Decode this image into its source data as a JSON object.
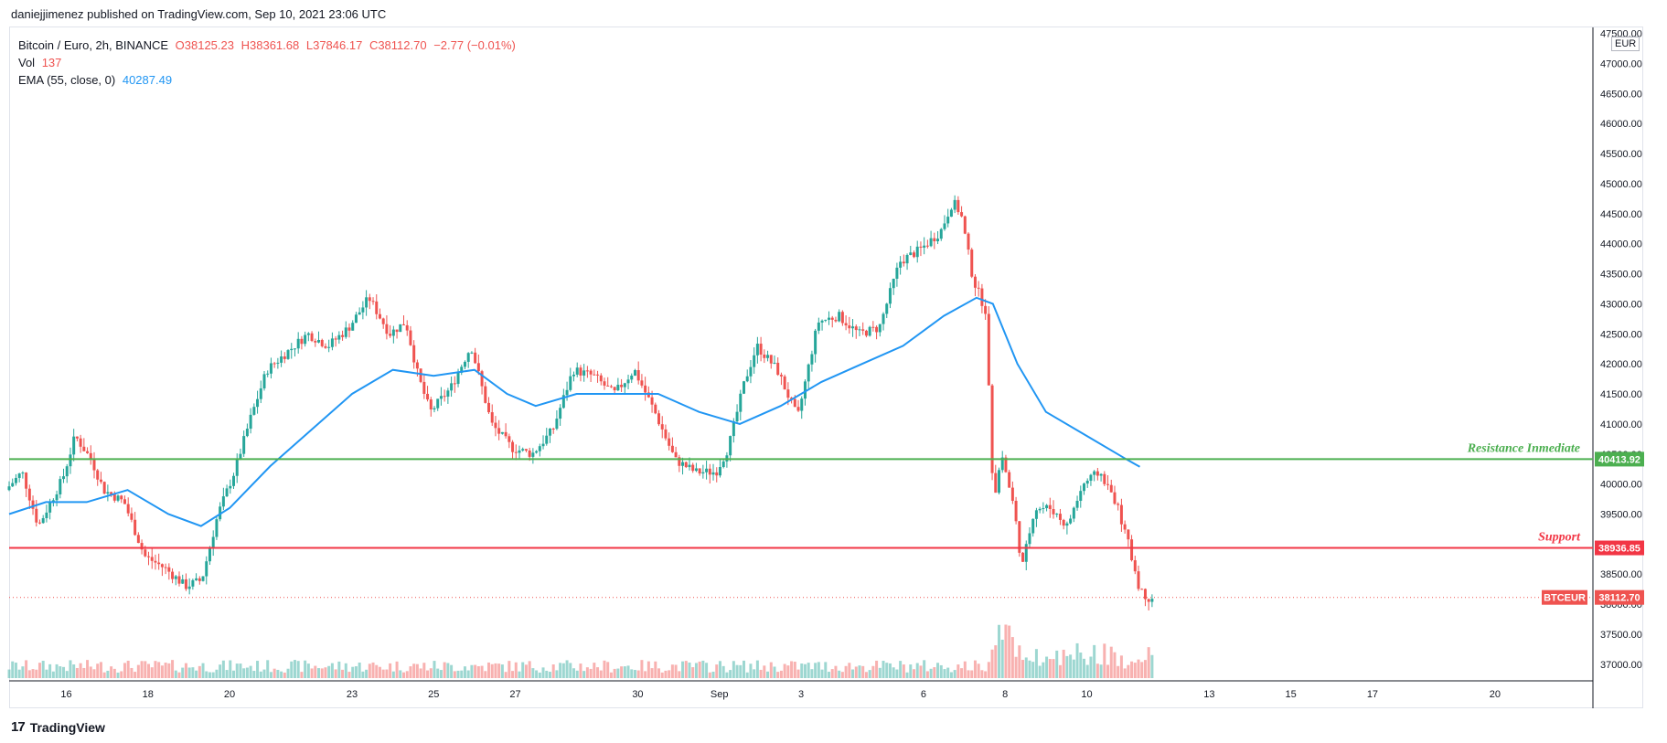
{
  "header": {
    "published_line": "daniejjimenez published on TradingView.com, Sep 10, 2021 23:06 UTC"
  },
  "legend": {
    "symbol": "Bitcoin / Euro, 2h, BINANCE",
    "open": "O38125.23",
    "high": "H38361.68",
    "low": "L37846.17",
    "close": "C38112.70",
    "change": "−2.77 (−0.01%)",
    "vol_label": "Vol",
    "vol_value": "137",
    "ema_label": "EMA (55, close, 0)",
    "ema_value": "40287.49"
  },
  "currency_badge": "EUR",
  "footer": {
    "logo_mark": "17",
    "brand": "TradingView"
  },
  "colors": {
    "up": "#26a69a",
    "down": "#ef5350",
    "ema": "#2196f3",
    "resistance": "#4caf50",
    "support": "#f23645"
  },
  "chart_data": {
    "type": "candlestick",
    "price_axis": {
      "min": 36800,
      "max": 47600,
      "ticks": [
        37000,
        37500,
        38000,
        38500,
        39000,
        39500,
        40000,
        40500,
        41000,
        41500,
        42000,
        42500,
        43000,
        43500,
        44000,
        44500,
        45000,
        45500,
        46000,
        46500,
        47000,
        47500
      ],
      "tick_labels": [
        "37000.00",
        "37500.00",
        "38000.00",
        "38500.00",
        "39000.00",
        "39500.00",
        "40000.00",
        "40500.00",
        "41000.00",
        "41500.00",
        "42000.00",
        "42500.00",
        "43000.00",
        "43500.00",
        "44000.00",
        "44500.00",
        "45000.00",
        "45500.00",
        "46000.00",
        "46500.00",
        "47000.00",
        "47500.00"
      ]
    },
    "time_axis": {
      "labels": [
        "16",
        "18",
        "20",
        "23",
        "25",
        "27",
        "30",
        "Sep",
        "3",
        "6",
        "8",
        "10",
        "13",
        "15",
        "17",
        "20"
      ],
      "label_days": [
        0,
        2,
        4,
        7,
        9,
        11,
        14,
        16,
        18,
        21,
        23,
        25,
        28,
        30,
        32,
        35
      ]
    },
    "levels": [
      {
        "name": "Resistance Inmediate",
        "price": 40413.92,
        "label": "40413.92",
        "color": "#4caf50"
      },
      {
        "name": "Support",
        "price": 38936.85,
        "label": "38936.85",
        "color": "#f23645"
      }
    ],
    "last_price": {
      "symbol": "BTCEUR",
      "price": 38112.7,
      "label": "38112.70"
    },
    "price_path": [
      [
        -1.4,
        39900
      ],
      [
        -1.0,
        40200
      ],
      [
        -0.6,
        39300
      ],
      [
        0.0,
        40100
      ],
      [
        0.3,
        40800
      ],
      [
        0.7,
        40400
      ],
      [
        1.0,
        39900
      ],
      [
        1.5,
        39700
      ],
      [
        2.0,
        38800
      ],
      [
        2.5,
        38600
      ],
      [
        3.0,
        38300
      ],
      [
        3.4,
        38400
      ],
      [
        3.8,
        39500
      ],
      [
        4.2,
        40200
      ],
      [
        4.6,
        41100
      ],
      [
        5.0,
        41900
      ],
      [
        5.5,
        42200
      ],
      [
        6.0,
        42500
      ],
      [
        6.5,
        42300
      ],
      [
        7.0,
        42600
      ],
      [
        7.5,
        43100
      ],
      [
        8.0,
        42500
      ],
      [
        8.4,
        42700
      ],
      [
        8.7,
        41800
      ],
      [
        9.0,
        41200
      ],
      [
        9.5,
        41600
      ],
      [
        10.0,
        42300
      ],
      [
        10.5,
        41000
      ],
      [
        11.0,
        40600
      ],
      [
        11.5,
        40500
      ],
      [
        12.0,
        40900
      ],
      [
        12.5,
        41900
      ],
      [
        13.0,
        41800
      ],
      [
        13.5,
        41500
      ],
      [
        14.0,
        41900
      ],
      [
        14.5,
        41200
      ],
      [
        15.0,
        40400
      ],
      [
        15.5,
        40200
      ],
      [
        16.0,
        40200
      ],
      [
        16.3,
        40600
      ],
      [
        16.7,
        41700
      ],
      [
        17.0,
        42300
      ],
      [
        17.5,
        41900
      ],
      [
        18.0,
        41100
      ],
      [
        18.5,
        42700
      ],
      [
        19.0,
        42800
      ],
      [
        19.5,
        42500
      ],
      [
        20.0,
        42600
      ],
      [
        20.5,
        43700
      ],
      [
        21.0,
        43900
      ],
      [
        21.5,
        44200
      ],
      [
        21.8,
        44700
      ],
      [
        22.0,
        44500
      ],
      [
        22.3,
        43400
      ],
      [
        22.6,
        42900
      ],
      [
        22.8,
        39700
      ],
      [
        23.0,
        40500
      ],
      [
        23.3,
        39600
      ],
      [
        23.5,
        38600
      ],
      [
        23.8,
        39600
      ],
      [
        24.2,
        39600
      ],
      [
        24.6,
        39300
      ],
      [
        25.0,
        40000
      ],
      [
        25.4,
        40200
      ],
      [
        25.8,
        39700
      ],
      [
        26.1,
        39000
      ],
      [
        26.4,
        38200
      ],
      [
        26.6,
        38112
      ]
    ],
    "ema_path": [
      [
        -1.4,
        39500
      ],
      [
        -0.5,
        39700
      ],
      [
        0.5,
        39700
      ],
      [
        1.5,
        39900
      ],
      [
        2.5,
        39500
      ],
      [
        3.3,
        39300
      ],
      [
        4.0,
        39600
      ],
      [
        5.0,
        40300
      ],
      [
        6.0,
        40900
      ],
      [
        7.0,
        41500
      ],
      [
        8.0,
        41900
      ],
      [
        9.0,
        41800
      ],
      [
        10.0,
        41900
      ],
      [
        10.8,
        41500
      ],
      [
        11.5,
        41300
      ],
      [
        12.5,
        41500
      ],
      [
        13.5,
        41500
      ],
      [
        14.5,
        41500
      ],
      [
        15.5,
        41200
      ],
      [
        16.5,
        41000
      ],
      [
        17.5,
        41300
      ],
      [
        18.5,
        41700
      ],
      [
        19.5,
        42000
      ],
      [
        20.5,
        42300
      ],
      [
        21.5,
        42800
      ],
      [
        22.3,
        43100
      ],
      [
        22.7,
        43000
      ],
      [
        23.3,
        42000
      ],
      [
        24.0,
        41200
      ],
      [
        25.0,
        40800
      ],
      [
        26.0,
        40400
      ],
      [
        26.3,
        40287
      ]
    ],
    "day_range": [
      -1.4,
      37.4
    ],
    "volume_note": "volume histogram bars along bottom, colored by candle direction"
  }
}
